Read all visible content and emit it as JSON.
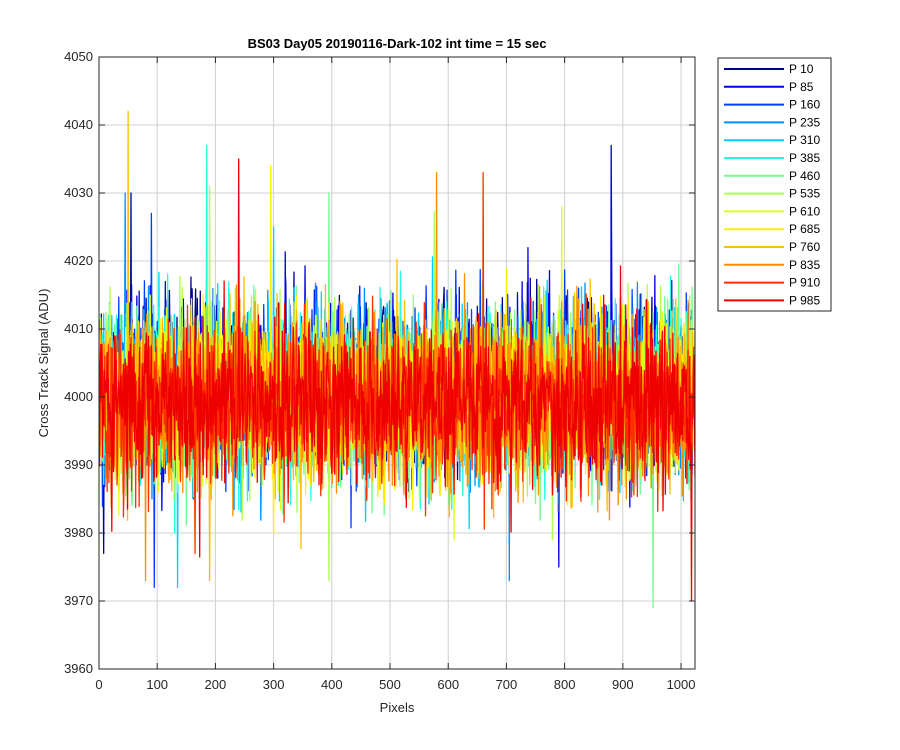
{
  "chart_data": {
    "type": "line",
    "title": "BS03 Day05 20190116-Dark-102 int time = 15 sec",
    "xlabel": "Pixels",
    "ylabel": "Cross Track Signal (ADU)",
    "xlim": [
      0,
      1024
    ],
    "ylim": [
      3960,
      4050
    ],
    "xticks": [
      0,
      100,
      200,
      300,
      400,
      500,
      600,
      700,
      800,
      900,
      1000
    ],
    "yticks": [
      3960,
      3970,
      3980,
      3990,
      4000,
      4010,
      4020,
      4030,
      4040,
      4050
    ],
    "grid": true,
    "legend_position": "outside-top-right",
    "series": [
      {
        "name": "P 10",
        "color": "#00008F",
        "center": 4002,
        "spread": 8,
        "max": 4030,
        "max_x": 55,
        "min": 3977,
        "min_x": 8
      },
      {
        "name": "P 85",
        "color": "#0000EA",
        "center": 4002,
        "spread": 8,
        "max": 4037,
        "max_x": 880,
        "min": 3975,
        "min_x": 790
      },
      {
        "name": "P 160",
        "color": "#0040FF",
        "center": 4001,
        "spread": 8,
        "max": 4027,
        "max_x": 90,
        "min": 3972,
        "min_x": 95
      },
      {
        "name": "P 235",
        "color": "#0090FF",
        "center": 4001,
        "spread": 8,
        "max": 4030,
        "max_x": 45,
        "min": 3973,
        "min_x": 705
      },
      {
        "name": "P 310",
        "color": "#00CFFF",
        "center": 4001,
        "spread": 8,
        "max": 4025,
        "max_x": 300,
        "min": 3972,
        "min_x": 135
      },
      {
        "name": "P 385",
        "color": "#20FFDF",
        "center": 4001,
        "spread": 8,
        "max": 4037,
        "max_x": 185,
        "min": 3980,
        "min_x": 130
      },
      {
        "name": "P 460",
        "color": "#70FF8F",
        "center": 4000,
        "spread": 8,
        "max": 4030,
        "max_x": 395,
        "min": 3969,
        "min_x": 952
      },
      {
        "name": "P 535",
        "color": "#AFFF50",
        "center": 4000,
        "spread": 8,
        "max": 4031,
        "max_x": 190,
        "min": 3973,
        "min_x": 395
      },
      {
        "name": "P 610",
        "color": "#DFFF20",
        "center": 4000,
        "spread": 8,
        "max": 4028,
        "max_x": 795,
        "min": 3979,
        "min_x": 610
      },
      {
        "name": "P 685",
        "color": "#FFEF00",
        "center": 4000,
        "spread": 8,
        "max": 4034,
        "max_x": 295,
        "min": 3980,
        "min_x": 300
      },
      {
        "name": "P 760",
        "color": "#FFBF00",
        "center": 4000,
        "spread": 8,
        "max": 4042,
        "max_x": 50,
        "min": 3973,
        "min_x": 190
      },
      {
        "name": "P 835",
        "color": "#FF8F00",
        "center": 3999,
        "spread": 8,
        "max": 4033,
        "max_x": 580,
        "min": 3973,
        "min_x": 80
      },
      {
        "name": "P 910",
        "color": "#FF3000",
        "center": 3999,
        "spread": 8,
        "max": 4033,
        "max_x": 660,
        "min": 3977,
        "min_x": 165
      },
      {
        "name": "P 985",
        "color": "#EF0000",
        "center": 3999,
        "spread": 8,
        "max": 4035,
        "max_x": 240,
        "min": 3970,
        "min_x": 1018
      }
    ]
  }
}
